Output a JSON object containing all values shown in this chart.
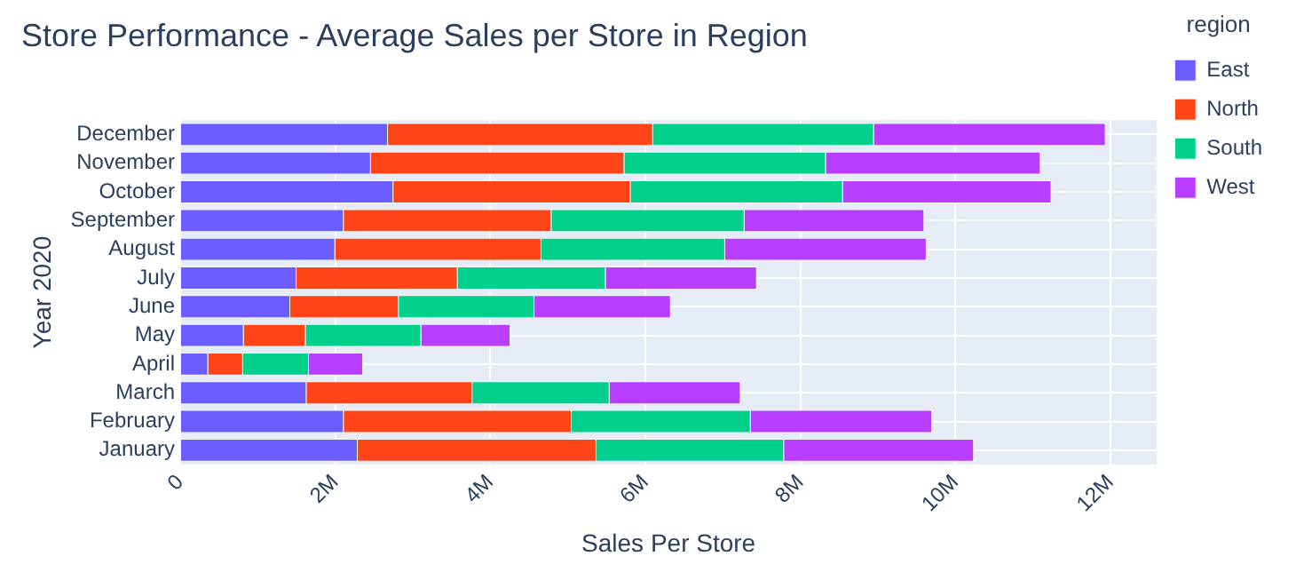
{
  "chart_data": {
    "type": "bar",
    "orientation": "horizontal",
    "stacked": true,
    "title": "Store Performance - Average Sales per Store in Region",
    "xlabel": "Sales Per Store",
    "ylabel": "Year 2020",
    "legend_title": "region",
    "legend": "top right",
    "grid": true,
    "categories": [
      "December",
      "November",
      "October",
      "September",
      "August",
      "July",
      "June",
      "May",
      "April",
      "March",
      "February",
      "January"
    ],
    "series": [
      {
        "name": "East",
        "color": "#6a5cff",
        "values": [
          2680000,
          2460000,
          2750000,
          2110000,
          2000000,
          1500000,
          1420000,
          820000,
          360000,
          1630000,
          2110000,
          2290000
        ]
      },
      {
        "name": "North",
        "color": "#ff4418",
        "values": [
          3420000,
          3270000,
          3060000,
          2680000,
          2660000,
          2080000,
          1400000,
          800000,
          450000,
          2140000,
          2940000,
          3080000
        ]
      },
      {
        "name": "South",
        "color": "#00d08c",
        "values": [
          2850000,
          2600000,
          2740000,
          2490000,
          2370000,
          1910000,
          1750000,
          1490000,
          850000,
          1770000,
          2310000,
          2420000
        ]
      },
      {
        "name": "West",
        "color": "#b83dff",
        "values": [
          2990000,
          2770000,
          2690000,
          2320000,
          2600000,
          1950000,
          1760000,
          1150000,
          700000,
          1690000,
          2340000,
          2450000
        ]
      }
    ],
    "xlim": [
      0,
      12600000
    ],
    "xticks": [
      0,
      {
        "value": 2000000,
        "label": "2M"
      },
      {
        "value": 4000000,
        "label": "4M"
      },
      {
        "value": 6000000,
        "label": "6M"
      },
      {
        "value": 8000000,
        "label": "8M"
      },
      {
        "value": 10000000,
        "label": "10M"
      },
      {
        "value": 12000000,
        "label": "12M"
      }
    ]
  }
}
